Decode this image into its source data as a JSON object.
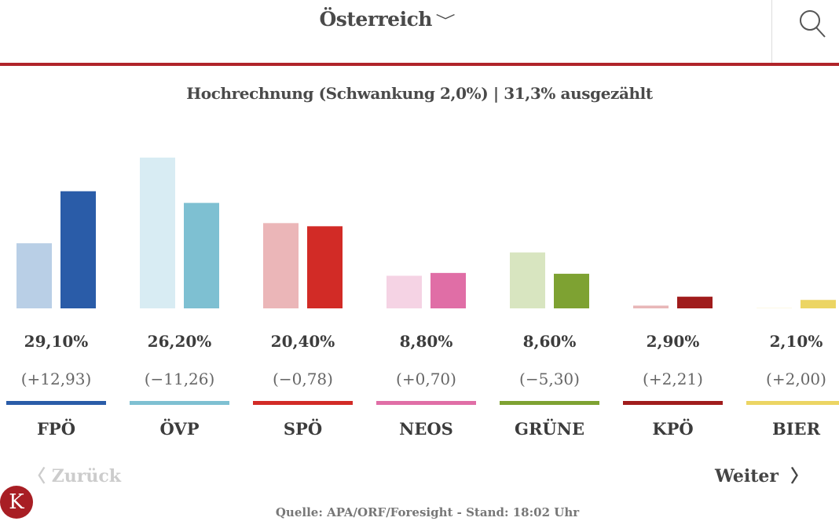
{
  "header": {
    "region": "Österreich",
    "chevron_icon": "chevron-down-icon",
    "search_icon": "search-icon",
    "accent": "#b0242a"
  },
  "subtitle": "Hochrechnung (Schwankung 2,0%) | 31,3% ausgezählt",
  "chart_data": {
    "type": "bar",
    "categories": [
      "FPÖ",
      "ÖVP",
      "SPÖ",
      "NEOS",
      "GRÜNE",
      "KPÖ",
      "BIER"
    ],
    "series": [
      {
        "values": [
          16.17,
          37.46,
          21.18,
          8.1,
          13.9,
          0.69,
          0.1
        ],
        "colors": [
          "#b9cfe6",
          "#d8ecf3",
          "#ebb6b8",
          "#f5d3e4",
          "#d8e5c0",
          "#e8b7b8",
          "#f9f2cc"
        ]
      },
      {
        "values": [
          29.1,
          26.2,
          20.4,
          8.8,
          8.6,
          2.9,
          2.1
        ],
        "colors": [
          "#2a5ca8",
          "#7ec0d2",
          "#d22b26",
          "#e06ea6",
          "#7ea232",
          "#a01c1c",
          "#ecd563"
        ]
      }
    ],
    "value_labels": [
      "29,10%",
      "26,20%",
      "20,40%",
      "8,80%",
      "8,60%",
      "2,90%",
      "2,10%"
    ],
    "change_labels": [
      "(+12,93)",
      "(−11,26)",
      "(−0,78)",
      "(+0,70)",
      "(−5,30)",
      "(+2,21)",
      "(+2,00)"
    ],
    "ylim": [
      0,
      40
    ],
    "grid": false
  },
  "nav": {
    "back": "Zurück",
    "next": "Weiter"
  },
  "logo": "K",
  "source": "Quelle: APA/ORF/Foresight - Stand: 18:02 Uhr"
}
